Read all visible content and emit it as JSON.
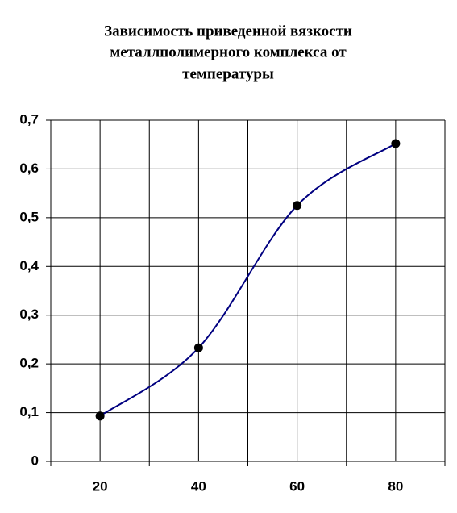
{
  "chart_data": {
    "type": "line",
    "title": [
      "Зависимость приведенной вязкости",
      "металлполимерного комплекса от",
      "температуры"
    ],
    "x": [
      20,
      40,
      60,
      80
    ],
    "series": [
      {
        "color": "#000080",
        "marker_color": "#000000",
        "values": [
          0.093,
          0.233,
          0.525,
          0.652
        ]
      }
    ],
    "smooth": true,
    "xlim": [
      10,
      90
    ],
    "xticks": [
      20,
      40,
      60,
      80
    ],
    "xgrid_extra": [
      10,
      30,
      50,
      70,
      90
    ],
    "ylim": [
      0,
      0.7
    ],
    "yticks": [
      0,
      {
        "value": 0.1,
        "label": "0,1"
      },
      {
        "value": 0.2,
        "label": "0,2"
      },
      {
        "value": 0.3,
        "label": "0,3"
      },
      {
        "value": 0.4,
        "label": "0,4"
      },
      {
        "value": 0.5,
        "label": "0,5"
      },
      {
        "value": 0.6,
        "label": "0,6"
      },
      {
        "value": 0.7,
        "label": "0,7"
      }
    ],
    "grid": true
  }
}
